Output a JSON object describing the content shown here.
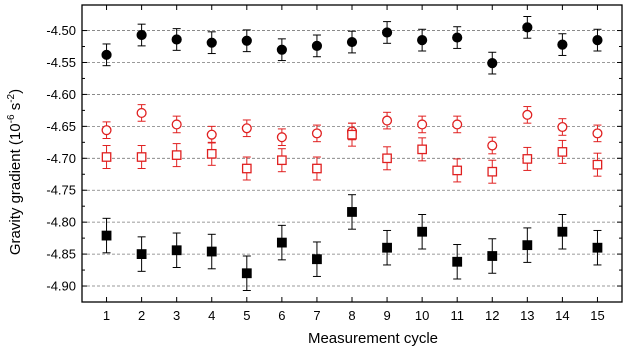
{
  "chart_data": {
    "type": "scatter",
    "xlabel": "Measurement cycle",
    "ylabel_main": "Gravity gradient (10",
    "ylabel_exp1": "-6",
    "ylabel_mid": " s",
    "ylabel_exp2": "-2",
    "ylabel_end": ")",
    "xlim": [
      0.3,
      15.7
    ],
    "ylim": [
      -4.925,
      -4.46
    ],
    "x_ticks": [
      1,
      2,
      3,
      4,
      5,
      6,
      7,
      8,
      9,
      10,
      11,
      12,
      13,
      14,
      15
    ],
    "y_ticks": [
      -4.5,
      -4.55,
      -4.6,
      -4.65,
      -4.7,
      -4.75,
      -4.8,
      -4.85,
      -4.9
    ],
    "y_tick_labels": [
      "-4.50",
      "-4.55",
      "-4.60",
      "-4.65",
      "-4.70",
      "-4.75",
      "-4.80",
      "-4.85",
      "-4.90"
    ],
    "grid": "horizontal-dashed",
    "series": [
      {
        "marker": "filled-circle",
        "color": "#000000",
        "x": [
          1,
          2,
          3,
          4,
          5,
          6,
          7,
          8,
          9,
          10,
          11,
          12,
          13,
          14,
          15
        ],
        "values": [
          -4.538,
          -4.507,
          -4.514,
          -4.519,
          -4.516,
          -4.53,
          -4.524,
          -4.518,
          -4.503,
          -4.515,
          -4.511,
          -4.551,
          -4.495,
          -4.522,
          -4.515
        ],
        "errors": [
          0.017,
          0.017,
          0.017,
          0.017,
          0.017,
          0.017,
          0.017,
          0.017,
          0.017,
          0.017,
          0.017,
          0.017,
          0.017,
          0.017,
          0.017
        ]
      },
      {
        "marker": "open-circle",
        "color": "#e02020",
        "x": [
          1,
          2,
          3,
          4,
          5,
          6,
          7,
          8,
          9,
          10,
          11,
          12,
          13,
          14,
          15
        ],
        "values": [
          -4.656,
          -4.629,
          -4.647,
          -4.663,
          -4.653,
          -4.667,
          -4.661,
          -4.658,
          -4.641,
          -4.647,
          -4.647,
          -4.68,
          -4.632,
          -4.651,
          -4.661
        ],
        "errors": [
          0.013,
          0.013,
          0.013,
          0.013,
          0.013,
          0.013,
          0.013,
          0.013,
          0.013,
          0.013,
          0.013,
          0.013,
          0.013,
          0.013,
          0.013
        ]
      },
      {
        "marker": "open-square",
        "color": "#e02020",
        "x": [
          1,
          2,
          3,
          4,
          5,
          6,
          7,
          8,
          9,
          10,
          11,
          12,
          13,
          14,
          15
        ],
        "values": [
          -4.698,
          -4.698,
          -4.695,
          -4.693,
          -4.716,
          -4.703,
          -4.716,
          -4.663,
          -4.7,
          -4.686,
          -4.719,
          -4.721,
          -4.701,
          -4.69,
          -4.71
        ],
        "errors": [
          0.018,
          0.018,
          0.018,
          0.018,
          0.018,
          0.018,
          0.018,
          0.018,
          0.018,
          0.018,
          0.018,
          0.018,
          0.018,
          0.018,
          0.018
        ]
      },
      {
        "marker": "filled-square",
        "color": "#000000",
        "x": [
          1,
          2,
          3,
          4,
          5,
          6,
          7,
          8,
          9,
          10,
          11,
          12,
          13,
          14,
          15
        ],
        "values": [
          -4.821,
          -4.85,
          -4.844,
          -4.846,
          -4.88,
          -4.832,
          -4.858,
          -4.784,
          -4.84,
          -4.815,
          -4.862,
          -4.853,
          -4.836,
          -4.815,
          -4.84
        ],
        "errors": [
          0.027,
          0.027,
          0.027,
          0.027,
          0.027,
          0.027,
          0.027,
          0.027,
          0.027,
          0.027,
          0.027,
          0.027,
          0.027,
          0.027,
          0.027
        ]
      }
    ]
  }
}
